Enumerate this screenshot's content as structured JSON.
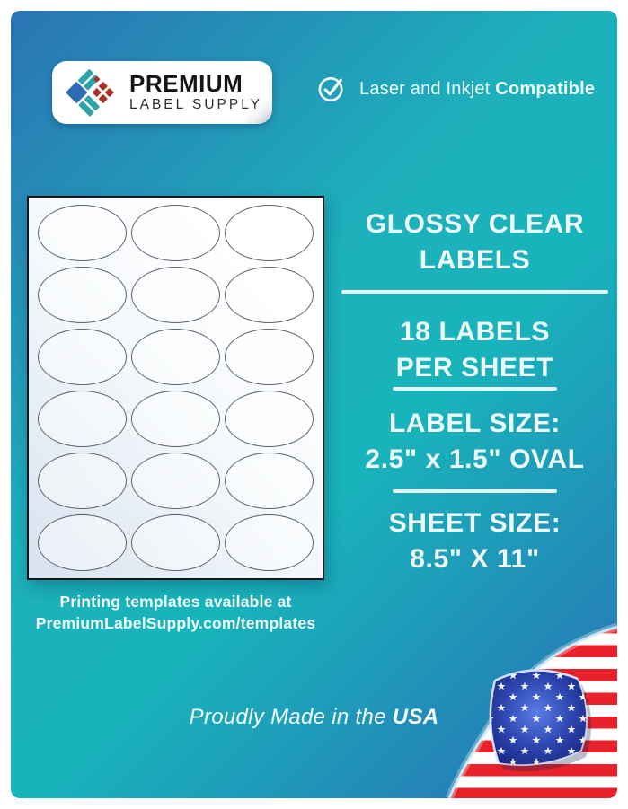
{
  "brand": {
    "name_line1": "PREMIUM",
    "name_line2": "LABEL SUPPLY",
    "logo_colors": {
      "blue": "#2d6cb3",
      "teal": "#2da4aa",
      "red": "#ac3025"
    }
  },
  "compatibility": {
    "text": "Laser and Inkjet",
    "highlight": "Compatible"
  },
  "sheet": {
    "rows": 6,
    "columns": 3,
    "total_labels": 18
  },
  "template_note": {
    "line1": "Printing templates available at",
    "line2": "PremiumLabelSupply.com/templates"
  },
  "specs": [
    {
      "id": "product",
      "lines": [
        "GLOSSY CLEAR",
        "LABELS"
      ]
    },
    {
      "id": "count",
      "lines": [
        "18 LABELS",
        "PER SHEET"
      ]
    },
    {
      "id": "label-size",
      "lines": [
        "LABEL SIZE:",
        "2.5\" x 1.5\" OVAL"
      ]
    },
    {
      "id": "sheet-size",
      "lines": [
        "SHEET SIZE:",
        "8.5\" X 11\""
      ]
    }
  ],
  "footer": {
    "text": "Proudly Made in the",
    "highlight": "USA"
  },
  "colors": {
    "background_teal": "#18b4bb",
    "background_blue_top": "#2b74b4",
    "background_blue_bottom": "#2a6db6",
    "flag_stripe_red": "#e8212a",
    "flag_field_blue": "#2c44ad",
    "star_white": "#ffffff",
    "text_white": "#edf9f9"
  }
}
